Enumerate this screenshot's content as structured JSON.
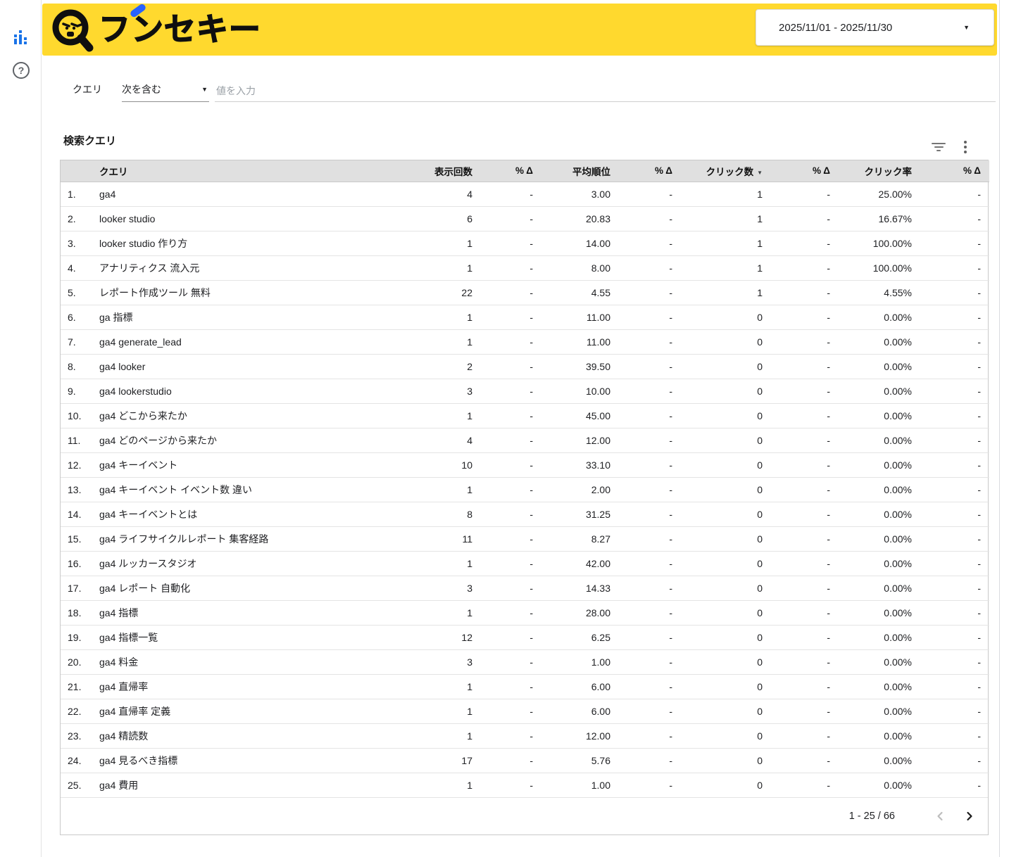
{
  "colors": {
    "accent_yellow": "#FFD92E",
    "accent_blue": "#1A73E8",
    "logo_blue": "#2962FF",
    "table_header_grey": "#E0E0E0"
  },
  "icons": {
    "help_glyph": "?",
    "dropdown_caret": "▼",
    "date_caret": "▼",
    "sort_caret": "▼"
  },
  "header": {
    "logo_text": "ブンセキー",
    "logo_text_base": "フ",
    "logo_text_rest": "ンセキー",
    "date_range": "2025/11/01 - 2025/11/30"
  },
  "filter": {
    "field_label": "クエリ",
    "operator": "次を含む",
    "input_value": "",
    "input_placeholder": "値を入力"
  },
  "table": {
    "title": "検索クエリ",
    "columns": [
      "クエリ",
      "表示回数",
      "% Δ",
      "平均順位",
      "% Δ",
      "クリック数",
      "% Δ",
      "クリック率",
      "% Δ"
    ],
    "sort_column": "クリック数",
    "sort_direction": "desc",
    "rows": [
      {
        "rank": "1.",
        "query": "ga4",
        "impressions": "4",
        "d1": "-",
        "avg_position": "3.00",
        "d2": "-",
        "clicks": "1",
        "d3": "-",
        "ctr": "25.00%",
        "d4": "-"
      },
      {
        "rank": "2.",
        "query": "looker studio",
        "impressions": "6",
        "d1": "-",
        "avg_position": "20.83",
        "d2": "-",
        "clicks": "1",
        "d3": "-",
        "ctr": "16.67%",
        "d4": "-"
      },
      {
        "rank": "3.",
        "query": "looker studio 作り方",
        "impressions": "1",
        "d1": "-",
        "avg_position": "14.00",
        "d2": "-",
        "clicks": "1",
        "d3": "-",
        "ctr": "100.00%",
        "d4": "-"
      },
      {
        "rank": "4.",
        "query": "アナリティクス 流入元",
        "impressions": "1",
        "d1": "-",
        "avg_position": "8.00",
        "d2": "-",
        "clicks": "1",
        "d3": "-",
        "ctr": "100.00%",
        "d4": "-"
      },
      {
        "rank": "5.",
        "query": "レポート作成ツール 無料",
        "impressions": "22",
        "d1": "-",
        "avg_position": "4.55",
        "d2": "-",
        "clicks": "1",
        "d3": "-",
        "ctr": "4.55%",
        "d4": "-"
      },
      {
        "rank": "6.",
        "query": "ga 指標",
        "impressions": "1",
        "d1": "-",
        "avg_position": "11.00",
        "d2": "-",
        "clicks": "0",
        "d3": "-",
        "ctr": "0.00%",
        "d4": "-"
      },
      {
        "rank": "7.",
        "query": "ga4 generate_lead",
        "impressions": "1",
        "d1": "-",
        "avg_position": "11.00",
        "d2": "-",
        "clicks": "0",
        "d3": "-",
        "ctr": "0.00%",
        "d4": "-"
      },
      {
        "rank": "8.",
        "query": "ga4 looker",
        "impressions": "2",
        "d1": "-",
        "avg_position": "39.50",
        "d2": "-",
        "clicks": "0",
        "d3": "-",
        "ctr": "0.00%",
        "d4": "-"
      },
      {
        "rank": "9.",
        "query": "ga4 lookerstudio",
        "impressions": "3",
        "d1": "-",
        "avg_position": "10.00",
        "d2": "-",
        "clicks": "0",
        "d3": "-",
        "ctr": "0.00%",
        "d4": "-"
      },
      {
        "rank": "10.",
        "query": "ga4 どこから来たか",
        "impressions": "1",
        "d1": "-",
        "avg_position": "45.00",
        "d2": "-",
        "clicks": "0",
        "d3": "-",
        "ctr": "0.00%",
        "d4": "-"
      },
      {
        "rank": "11.",
        "query": "ga4 どのページから来たか",
        "impressions": "4",
        "d1": "-",
        "avg_position": "12.00",
        "d2": "-",
        "clicks": "0",
        "d3": "-",
        "ctr": "0.00%",
        "d4": "-"
      },
      {
        "rank": "12.",
        "query": "ga4 キーイベント",
        "impressions": "10",
        "d1": "-",
        "avg_position": "33.10",
        "d2": "-",
        "clicks": "0",
        "d3": "-",
        "ctr": "0.00%",
        "d4": "-"
      },
      {
        "rank": "13.",
        "query": "ga4 キーイベント イベント数 違い",
        "impressions": "1",
        "d1": "-",
        "avg_position": "2.00",
        "d2": "-",
        "clicks": "0",
        "d3": "-",
        "ctr": "0.00%",
        "d4": "-"
      },
      {
        "rank": "14.",
        "query": "ga4 キーイベントとは",
        "impressions": "8",
        "d1": "-",
        "avg_position": "31.25",
        "d2": "-",
        "clicks": "0",
        "d3": "-",
        "ctr": "0.00%",
        "d4": "-"
      },
      {
        "rank": "15.",
        "query": "ga4 ライフサイクルレポート 集客経路",
        "impressions": "11",
        "d1": "-",
        "avg_position": "8.27",
        "d2": "-",
        "clicks": "0",
        "d3": "-",
        "ctr": "0.00%",
        "d4": "-"
      },
      {
        "rank": "16.",
        "query": "ga4 ルッカースタジオ",
        "impressions": "1",
        "d1": "-",
        "avg_position": "42.00",
        "d2": "-",
        "clicks": "0",
        "d3": "-",
        "ctr": "0.00%",
        "d4": "-"
      },
      {
        "rank": "17.",
        "query": "ga4 レポート 自動化",
        "impressions": "3",
        "d1": "-",
        "avg_position": "14.33",
        "d2": "-",
        "clicks": "0",
        "d3": "-",
        "ctr": "0.00%",
        "d4": "-"
      },
      {
        "rank": "18.",
        "query": "ga4 指標",
        "impressions": "1",
        "d1": "-",
        "avg_position": "28.00",
        "d2": "-",
        "clicks": "0",
        "d3": "-",
        "ctr": "0.00%",
        "d4": "-"
      },
      {
        "rank": "19.",
        "query": "ga4 指標一覧",
        "impressions": "12",
        "d1": "-",
        "avg_position": "6.25",
        "d2": "-",
        "clicks": "0",
        "d3": "-",
        "ctr": "0.00%",
        "d4": "-"
      },
      {
        "rank": "20.",
        "query": "ga4 料金",
        "impressions": "3",
        "d1": "-",
        "avg_position": "1.00",
        "d2": "-",
        "clicks": "0",
        "d3": "-",
        "ctr": "0.00%",
        "d4": "-"
      },
      {
        "rank": "21.",
        "query": "ga4 直帰率",
        "impressions": "1",
        "d1": "-",
        "avg_position": "6.00",
        "d2": "-",
        "clicks": "0",
        "d3": "-",
        "ctr": "0.00%",
        "d4": "-"
      },
      {
        "rank": "22.",
        "query": "ga4 直帰率 定義",
        "impressions": "1",
        "d1": "-",
        "avg_position": "6.00",
        "d2": "-",
        "clicks": "0",
        "d3": "-",
        "ctr": "0.00%",
        "d4": "-"
      },
      {
        "rank": "23.",
        "query": "ga4 精読数",
        "impressions": "1",
        "d1": "-",
        "avg_position": "12.00",
        "d2": "-",
        "clicks": "0",
        "d3": "-",
        "ctr": "0.00%",
        "d4": "-"
      },
      {
        "rank": "24.",
        "query": "ga4 見るべき指標",
        "impressions": "17",
        "d1": "-",
        "avg_position": "5.76",
        "d2": "-",
        "clicks": "0",
        "d3": "-",
        "ctr": "0.00%",
        "d4": "-"
      },
      {
        "rank": "25.",
        "query": "ga4 費用",
        "impressions": "1",
        "d1": "-",
        "avg_position": "1.00",
        "d2": "-",
        "clicks": "0",
        "d3": "-",
        "ctr": "0.00%",
        "d4": "-"
      }
    ],
    "pagination": {
      "label": "1 - 25 / 66"
    }
  }
}
